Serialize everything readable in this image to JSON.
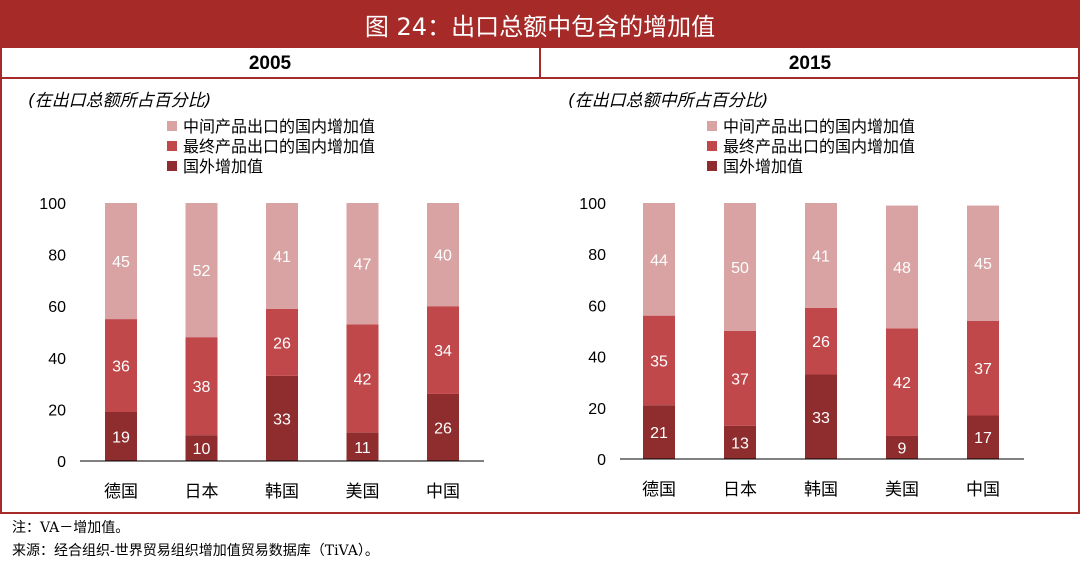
{
  "title": "图 24：出口总额中包含的增加值",
  "colors": {
    "intermediate": "#d9a3a3",
    "final": "#c0474a",
    "foreign": "#8e2c2e",
    "brand": "#a52a28"
  },
  "legend": [
    "中间产品出口的国内增加值",
    "最终产品出口的国内增加值",
    "国外增加值"
  ],
  "chart_data": [
    {
      "type": "bar",
      "title": "2005",
      "ylabel": "(在出口总额所占百分比)",
      "categories": [
        "德国",
        "日本",
        "韩国",
        "美国",
        "中国"
      ],
      "series": [
        {
          "name": "国外增加值",
          "values": [
            19,
            10,
            33,
            11,
            26
          ]
        },
        {
          "name": "最终产品出口的国内增加值",
          "values": [
            36,
            38,
            26,
            42,
            34
          ]
        },
        {
          "name": "中间产品出口的国内增加值",
          "values": [
            45,
            52,
            41,
            47,
            40
          ]
        }
      ],
      "ylim": [
        0,
        100
      ],
      "yticks": [
        "0",
        "20",
        "40",
        "60",
        "80",
        "100"
      ],
      "stacked": true
    },
    {
      "type": "bar",
      "title": "2015",
      "ylabel": "(在出口总额中所占百分比)",
      "categories": [
        "德国",
        "日本",
        "韩国",
        "美国",
        "中国"
      ],
      "series": [
        {
          "name": "国外增加值",
          "values": [
            21,
            13,
            33,
            9,
            17
          ]
        },
        {
          "name": "最终产品出口的国内增加值",
          "values": [
            35,
            37,
            26,
            42,
            37
          ]
        },
        {
          "name": "中间产品出口的国内增加值",
          "values": [
            44,
            50,
            41,
            48,
            45
          ]
        }
      ],
      "ylim": [
        0,
        100
      ],
      "yticks": [
        "0",
        "20",
        "40",
        "60",
        "80",
        "100"
      ],
      "stacked": true
    }
  ],
  "notes": {
    "note": "注：VA－增加值。",
    "source": "来源：经合组织-世界贸易组织增加值贸易数据库（TiVA）。"
  }
}
